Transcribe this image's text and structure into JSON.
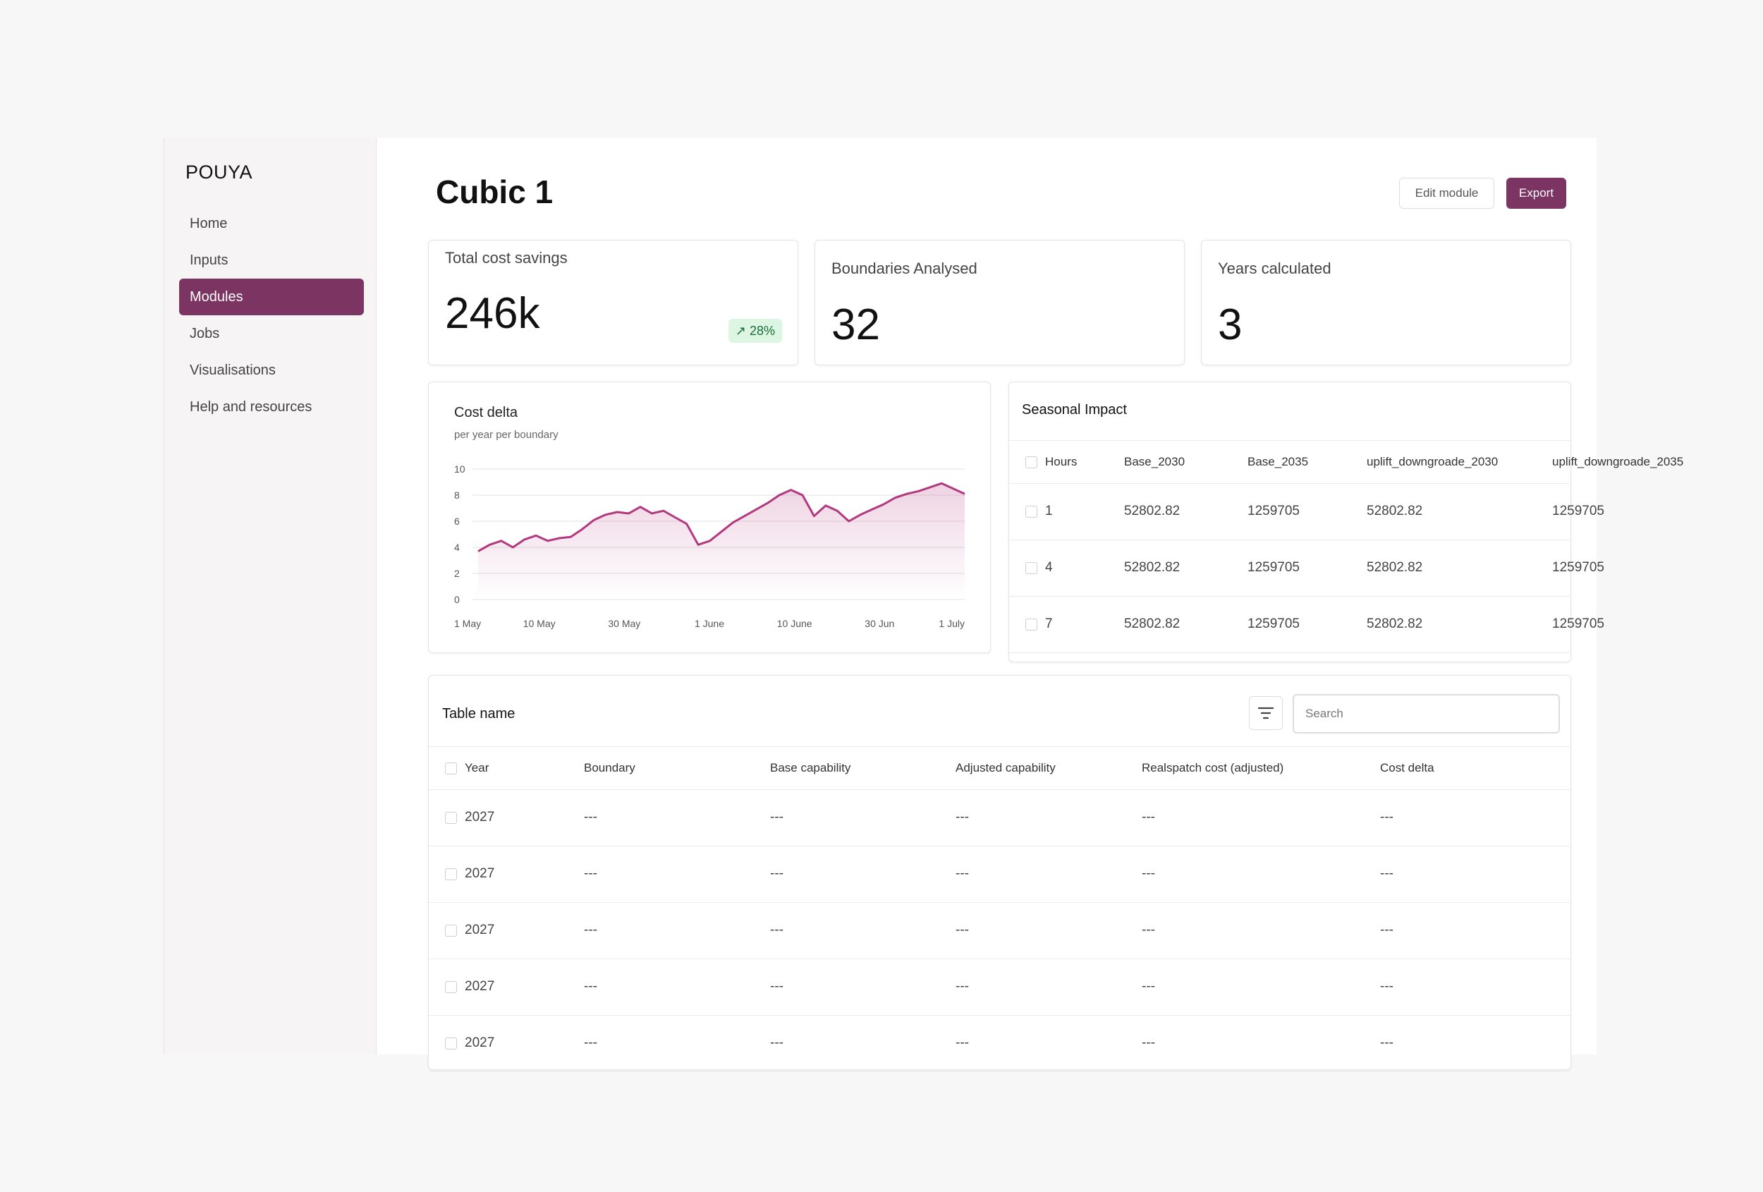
{
  "app": {
    "logo": "POUYA"
  },
  "sidebar": {
    "items": [
      {
        "label": "Home",
        "active": false
      },
      {
        "label": "Inputs",
        "active": false
      },
      {
        "label": "Modules",
        "active": true
      },
      {
        "label": "Jobs",
        "active": false
      },
      {
        "label": "Visualisations",
        "active": false
      },
      {
        "label": "Help and resources",
        "active": false
      }
    ]
  },
  "header": {
    "title": "Cubic 1",
    "edit_label": "Edit module",
    "export_label": "Export"
  },
  "stats": [
    {
      "label": "Total cost savings",
      "value": "246k",
      "badge": "28%",
      "badge_icon": "arrow-up-right-icon"
    },
    {
      "label": "Boundaries Analysed",
      "value": "32"
    },
    {
      "label": "Years calculated",
      "value": "3"
    }
  ],
  "chart": {
    "title": "Cost delta",
    "subtitle": "per year per boundary"
  },
  "chart_data": {
    "type": "area",
    "title": "Cost delta",
    "subtitle": "per year per boundary",
    "x_ticks": [
      "1 May",
      "10 May",
      "30 May",
      "1 June",
      "10 June",
      "30 Jun",
      "1 July"
    ],
    "y_ticks": [
      0,
      2,
      4,
      6,
      8,
      10
    ],
    "ylim": [
      0,
      10
    ],
    "grid": true,
    "color": "#b4387e",
    "values": [
      3.7,
      4.2,
      4.5,
      4.0,
      4.6,
      4.9,
      4.5,
      4.7,
      4.8,
      5.4,
      6.1,
      6.5,
      6.7,
      6.6,
      7.1,
      6.6,
      6.8,
      6.3,
      5.8,
      4.2,
      4.5,
      5.2,
      5.9,
      6.4,
      6.9,
      7.4,
      8.0,
      8.4,
      8.0,
      6.4,
      7.2,
      6.8,
      6.0,
      6.5,
      6.9,
      7.3,
      7.8,
      8.1,
      8.3,
      8.6,
      8.9,
      8.5,
      8.1
    ]
  },
  "seasonal": {
    "title": "Seasonal Impact",
    "columns": [
      "Hours",
      "Base_2030",
      "Base_2035",
      "uplift_downgroade_2030",
      "uplift_downgroade_2035"
    ],
    "rows": [
      [
        "1",
        "52802.82",
        "1259705",
        "52802.82",
        "1259705"
      ],
      [
        "4",
        "52802.82",
        "1259705",
        "52802.82",
        "1259705"
      ],
      [
        "7",
        "52802.82",
        "1259705",
        "52802.82",
        "1259705"
      ]
    ]
  },
  "table": {
    "title": "Table name",
    "search_placeholder": "Search",
    "filter_icon": "filter-icon",
    "columns": [
      "Year",
      "Boundary",
      "Base capability",
      "Adjusted capability",
      "Realspatch cost (adjusted)",
      "Cost delta"
    ],
    "rows": [
      [
        "2027",
        "---",
        "---",
        "---",
        "---",
        "---"
      ],
      [
        "2027",
        "---",
        "---",
        "---",
        "---",
        "---"
      ],
      [
        "2027",
        "---",
        "---",
        "---",
        "---",
        "---"
      ],
      [
        "2027",
        "---",
        "---",
        "---",
        "---",
        "---"
      ],
      [
        "2027",
        "---",
        "---",
        "---",
        "---",
        "---"
      ]
    ]
  },
  "colors": {
    "accent": "#7c3462",
    "chart_line": "#b4387e",
    "badge_bg": "#ddf6e4"
  }
}
